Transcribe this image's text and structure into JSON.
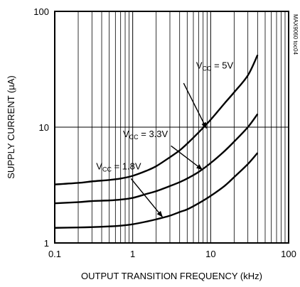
{
  "chart_data": {
    "type": "line",
    "title": "",
    "xlabel": "OUTPUT TRANSITION FREQUENCY (kHz)",
    "ylabel": "SUPPLY CURRENT (µA)",
    "x_scale": "log",
    "y_scale": "log",
    "xlim": [
      0.1,
      100
    ],
    "ylim": [
      1,
      100
    ],
    "grid": true,
    "x_tick_labels": [
      "0.1",
      "1",
      "10",
      "100"
    ],
    "y_tick_labels": [
      "1",
      "10",
      "100"
    ],
    "series": [
      {
        "name": "VCC = 5V",
        "label_main": "V",
        "label_sub": "CC",
        "label_rest": " = 5V",
        "x": [
          0.1,
          0.2,
          0.3,
          0.5,
          0.7,
          1,
          1.5,
          2,
          3,
          4,
          5,
          7,
          10,
          15,
          20,
          30,
          40
        ],
        "y": [
          3.2,
          3.3,
          3.4,
          3.5,
          3.6,
          3.8,
          4.2,
          4.6,
          5.5,
          6.3,
          7.2,
          9.0,
          11.6,
          16,
          20,
          28,
          42
        ]
      },
      {
        "name": "VCC = 3.3V",
        "label_main": "V",
        "label_sub": "CC",
        "label_rest": " = 3.3V",
        "x": [
          0.1,
          0.2,
          0.3,
          0.5,
          0.7,
          1,
          1.5,
          2,
          3,
          4,
          5,
          7,
          10,
          15,
          20,
          30,
          40
        ],
        "y": [
          2.2,
          2.25,
          2.3,
          2.33,
          2.37,
          2.45,
          2.65,
          2.8,
          3.1,
          3.35,
          3.6,
          4.1,
          4.9,
          6.2,
          7.5,
          10,
          13
        ]
      },
      {
        "name": "VCC = 1.8V",
        "label_main": "V",
        "label_sub": "CC",
        "label_rest": " = 1.8V",
        "x": [
          0.1,
          0.2,
          0.3,
          0.5,
          0.7,
          1,
          1.5,
          2,
          3,
          4,
          5,
          7,
          10,
          15,
          20,
          30,
          40
        ],
        "y": [
          1.35,
          1.36,
          1.37,
          1.39,
          1.41,
          1.45,
          1.53,
          1.6,
          1.72,
          1.85,
          1.95,
          2.2,
          2.55,
          3.1,
          3.7,
          4.8,
          6
        ]
      }
    ],
    "annotations": [
      {
        "series": 0,
        "text_x": 6.5,
        "text_y": 32,
        "arrow_from": [
          4.5,
          24
        ],
        "arrow_to": [
          8.8,
          9.8
        ]
      },
      {
        "series": 1,
        "text_x": 0.75,
        "text_y": 8.2,
        "arrow_from": [
          3.1,
          6.9
        ],
        "arrow_to": [
          7.8,
          4.3
        ]
      },
      {
        "series": 2,
        "text_x": 0.34,
        "text_y": 4.3,
        "arrow_from": [
          0.95,
          3.6
        ],
        "arrow_to": [
          2.4,
          1.68
        ]
      }
    ],
    "doc_id": "MAX9060 toc04"
  }
}
